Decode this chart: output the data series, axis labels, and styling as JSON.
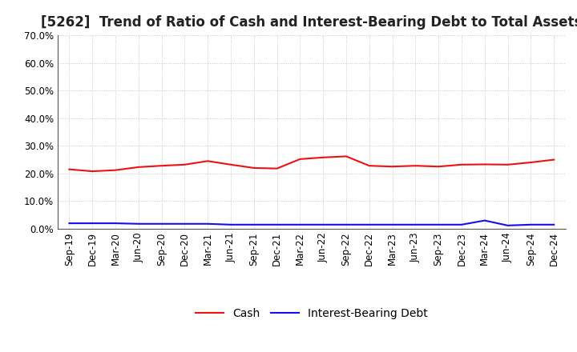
{
  "title": "[5262]  Trend of Ratio of Cash and Interest-Bearing Debt to Total Assets",
  "x_labels": [
    "Sep-19",
    "Dec-19",
    "Mar-20",
    "Jun-20",
    "Sep-20",
    "Dec-20",
    "Mar-21",
    "Jun-21",
    "Sep-21",
    "Dec-21",
    "Mar-22",
    "Jun-22",
    "Sep-22",
    "Dec-22",
    "Mar-23",
    "Jun-23",
    "Sep-23",
    "Dec-23",
    "Mar-24",
    "Jun-24",
    "Sep-24",
    "Dec-24"
  ],
  "cash": [
    21.5,
    20.8,
    21.2,
    22.3,
    22.8,
    23.2,
    24.5,
    23.2,
    22.0,
    21.8,
    25.2,
    25.8,
    26.2,
    22.8,
    22.5,
    22.8,
    22.5,
    23.2,
    23.3,
    23.2,
    24.0,
    25.0
  ],
  "interest_bearing_debt": [
    2.0,
    2.0,
    2.0,
    1.8,
    1.8,
    1.8,
    1.8,
    1.5,
    1.5,
    1.5,
    1.5,
    1.5,
    1.5,
    1.5,
    1.5,
    1.5,
    1.5,
    1.5,
    3.0,
    1.2,
    1.5,
    1.5
  ],
  "cash_color": "#EE1111",
  "debt_color": "#1111EE",
  "background_color": "#FFFFFF",
  "grid_color": "#BBBBBB",
  "ylim": [
    0,
    70
  ],
  "yticks": [
    0,
    10,
    20,
    30,
    40,
    50,
    60,
    70
  ],
  "legend_cash": "Cash",
  "legend_debt": "Interest-Bearing Debt",
  "title_fontsize": 12,
  "tick_fontsize": 8.5,
  "legend_fontsize": 10
}
